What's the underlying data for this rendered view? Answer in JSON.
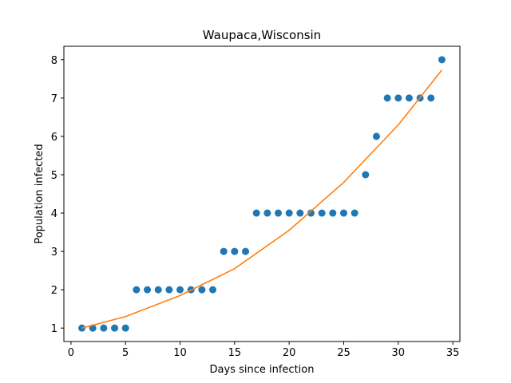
{
  "chart_data": {
    "type": "scatter",
    "title": "Waupaca,Wisconsin",
    "xlabel": "Days since infection",
    "ylabel": "Population infected",
    "xlim": [
      -0.65,
      35.65
    ],
    "ylim": [
      0.65,
      8.35
    ],
    "xticks": [
      0,
      5,
      10,
      15,
      20,
      25,
      30,
      35
    ],
    "yticks": [
      1,
      2,
      3,
      4,
      5,
      6,
      7,
      8
    ],
    "grid": false,
    "series": [
      {
        "kind": "scatter",
        "color": "#1f77b4",
        "points": [
          [
            1,
            1
          ],
          [
            2,
            1
          ],
          [
            3,
            1
          ],
          [
            4,
            1
          ],
          [
            5,
            1
          ],
          [
            6,
            2
          ],
          [
            7,
            2
          ],
          [
            8,
            2
          ],
          [
            9,
            2
          ],
          [
            10,
            2
          ],
          [
            11,
            2
          ],
          [
            12,
            2
          ],
          [
            13,
            2
          ],
          [
            14,
            3
          ],
          [
            15,
            3
          ],
          [
            16,
            3
          ],
          [
            17,
            4
          ],
          [
            18,
            4
          ],
          [
            19,
            4
          ],
          [
            20,
            4
          ],
          [
            21,
            4
          ],
          [
            22,
            4
          ],
          [
            23,
            4
          ],
          [
            24,
            4
          ],
          [
            25,
            4
          ],
          [
            26,
            4
          ],
          [
            27,
            5
          ],
          [
            28,
            6
          ],
          [
            29,
            7
          ],
          [
            30,
            7
          ],
          [
            31,
            7
          ],
          [
            32,
            7
          ],
          [
            33,
            7
          ],
          [
            34,
            8
          ]
        ]
      },
      {
        "kind": "line",
        "color": "#ff7f0e",
        "points": [
          [
            1,
            1.0
          ],
          [
            5,
            1.3
          ],
          [
            10,
            1.85
          ],
          [
            15,
            2.55
          ],
          [
            20,
            3.55
          ],
          [
            25,
            4.8
          ],
          [
            30,
            6.3
          ],
          [
            34,
            7.73
          ]
        ]
      }
    ]
  }
}
